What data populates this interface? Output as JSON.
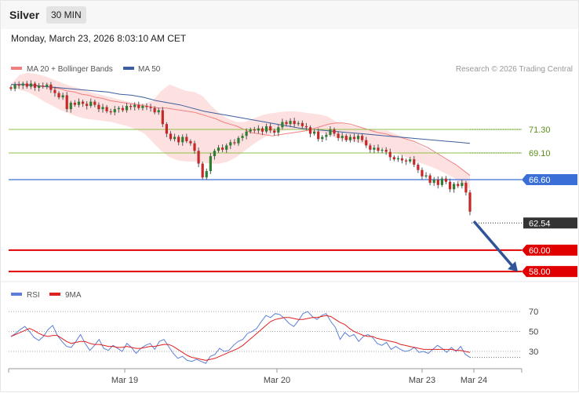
{
  "header": {
    "title": "Silver",
    "timeframe": "30 MIN",
    "date": "Monday, March 23, 2026 8:03:10 AM CET",
    "copyright": "Research © 2026 Trading Central"
  },
  "legend": {
    "main": [
      {
        "label": "MA 20 + Bollinger Bands",
        "color": "#f08080"
      },
      {
        "label": "MA 50",
        "color": "#3d5e9e"
      }
    ],
    "rsi": [
      {
        "label": "RSI",
        "color": "#5b7fd6"
      },
      {
        "label": "9MA",
        "color": "#e02020"
      }
    ]
  },
  "chart_data": [
    {
      "type": "line",
      "ylim": [
        57.2,
        76.0
      ],
      "x_ticks": [
        "Mar 19",
        "Mar 20",
        "Mar 23",
        "Mar 24"
      ],
      "close": [
        75.1,
        75.5,
        75.4,
        75.6,
        75.3,
        75.6,
        75.2,
        75.4,
        75.3,
        75.5,
        75.0,
        74.7,
        74.3,
        74.5,
        73.2,
        73.8,
        73.6,
        73.9,
        73.7,
        73.5,
        73.9,
        73.6,
        73.2,
        73.4,
        73.0,
        72.9,
        73.2,
        73.3,
        73.1,
        73.5,
        73.4,
        73.6,
        73.3,
        73.5,
        73.4,
        73.3,
        72.9,
        73.1,
        71.8,
        70.9,
        70.4,
        70.6,
        70.1,
        70.6,
        70.2,
        70.0,
        69.3,
        68.1,
        66.8,
        67.4,
        68.8,
        69.3,
        69.6,
        69.4,
        69.8,
        70.1,
        70.0,
        70.5,
        70.7,
        71.1,
        71.3,
        71.2,
        71.4,
        71.1,
        71.6,
        71.2,
        71.0,
        71.5,
        72.0,
        71.8,
        72.1,
        71.8,
        71.9,
        71.6,
        71.5,
        70.9,
        71.1,
        70.4,
        70.6,
        70.8,
        71.3,
        70.9,
        70.5,
        70.7,
        70.3,
        70.6,
        70.4,
        70.7,
        70.3,
        69.8,
        69.4,
        69.6,
        69.3,
        69.4,
        69.2,
        68.7,
        68.5,
        68.6,
        68.4,
        68.3,
        68.5,
        68.0,
        67.5,
        66.9,
        67.0,
        66.3,
        66.6,
        66.1,
        66.7,
        66.4,
        65.7,
        66.2,
        66.0,
        66.3,
        65.4,
        63.6
      ],
      "ma20": [
        75.5,
        75.5,
        75.5,
        75.5,
        75.4,
        75.3,
        75.2,
        75.1,
        74.9,
        74.8,
        74.6,
        74.5,
        74.3,
        74.2,
        74.0,
        73.9,
        73.8,
        73.7,
        73.6,
        73.5,
        73.4,
        73.3,
        73.3,
        73.2,
        73.1,
        73.0,
        72.9,
        72.7,
        72.5,
        72.3,
        72.0,
        71.8,
        71.6,
        71.3,
        71.0,
        70.9,
        70.8,
        70.7,
        70.8,
        70.9,
        71.0,
        71.1,
        71.2,
        71.4,
        71.6,
        71.8,
        71.9,
        71.9,
        71.8,
        71.6,
        71.4,
        71.2,
        71.0,
        70.9,
        70.7,
        70.6,
        70.4,
        70.2,
        69.9,
        69.6,
        69.2,
        68.8,
        68.4,
        68.0,
        67.5,
        67.0
      ],
      "ma50": [
        75.5,
        75.5,
        75.4,
        75.3,
        75.2,
        75.1,
        75.0,
        74.9,
        74.8,
        74.6,
        74.5,
        74.3,
        74.0,
        73.8,
        73.6,
        73.3,
        73.0,
        72.8,
        72.6,
        72.4,
        72.2,
        72.0,
        71.8,
        71.6,
        71.4,
        71.3,
        71.2,
        71.1,
        71.0,
        70.9,
        70.8,
        70.7,
        70.6,
        70.5,
        70.4,
        70.3,
        70.2,
        70.1,
        70.0
      ],
      "bollinger_upper": [
        75.5,
        76.4,
        76.6,
        76.5,
        76.3,
        76.0,
        75.7,
        75.4,
        75.2,
        74.9,
        74.7,
        74.5,
        74.3,
        74.1,
        73.9,
        73.8,
        73.7,
        74.0,
        74.9,
        75.5,
        75.2,
        74.9,
        74.8,
        74.4,
        73.5,
        72.8,
        72.3,
        72.0,
        72.0,
        72.3,
        72.6,
        72.8,
        72.9,
        73.0,
        73.0,
        72.9,
        72.8,
        72.7,
        72.5,
        72.0,
        71.8,
        71.6,
        71.4,
        71.3,
        71.2,
        71.2,
        70.9,
        70.6,
        70.2,
        69.8,
        69.4,
        69.0,
        68.6,
        68.2,
        67.6,
        67.0
      ],
      "bollinger_lower": [
        75.5,
        75.0,
        74.8,
        74.4,
        73.9,
        73.5,
        73.1,
        72.8,
        72.5,
        72.3,
        72.2,
        72.1,
        72.0,
        71.8,
        71.6,
        71.3,
        70.9,
        70.1,
        69.3,
        68.7,
        68.4,
        68.3,
        68.3,
        68.2,
        68.1,
        68.1,
        68.3,
        68.7,
        69.3,
        69.9,
        70.4,
        70.8,
        71.1,
        71.2,
        71.3,
        71.2,
        71.1,
        71.0,
        70.8,
        70.5,
        70.3,
        70.2,
        70.0,
        69.8,
        69.6,
        69.4,
        69.1,
        68.8,
        68.5,
        68.2,
        67.9,
        67.6,
        67.2,
        66.8,
        66.2,
        65.7
      ],
      "levels": [
        {
          "label": "71.30",
          "value": 71.3,
          "kind": "resistance",
          "color": "#8fbf4a",
          "text_color": "#5a8f1e"
        },
        {
          "label": "69.10",
          "value": 69.1,
          "kind": "resistance",
          "color": "#8fbf4a",
          "text_color": "#5a8f1e"
        },
        {
          "label": "66.60",
          "value": 66.6,
          "kind": "pivot",
          "color": "#3a6fd8",
          "text_color": "#ffffff"
        },
        {
          "label": "62.54",
          "value": 62.54,
          "kind": "last-price",
          "color": "#333333",
          "text_color": "#ffffff"
        },
        {
          "label": "60.00",
          "value": 60.0,
          "kind": "support",
          "color": "#e00000",
          "text_color": "#ffffff"
        },
        {
          "label": "58.00",
          "value": 58.0,
          "kind": "support",
          "color": "#e00000",
          "text_color": "#ffffff"
        }
      ],
      "arrow": {
        "from": 62.7,
        "to": 58.0,
        "color": "#2f5597"
      }
    },
    {
      "type": "line",
      "ylim": [
        15,
        78
      ],
      "y_ticks": [
        "70",
        "50",
        "30"
      ],
      "rsi": [
        45,
        48,
        52,
        55,
        50,
        44,
        41,
        45,
        52,
        56,
        46,
        40,
        35,
        34,
        40,
        47,
        38,
        31,
        36,
        42,
        33,
        31,
        36,
        33,
        30,
        38,
        34,
        28,
        33,
        36,
        38,
        32,
        40,
        42,
        35,
        28,
        23,
        25,
        21,
        20,
        22,
        20,
        18,
        25,
        27,
        33,
        30,
        31,
        36,
        40,
        42,
        48,
        50,
        53,
        60,
        66,
        64,
        68,
        67,
        63,
        58,
        55,
        61,
        68,
        70,
        65,
        62,
        66,
        68,
        60,
        54,
        42,
        49,
        45,
        47,
        40,
        45,
        47,
        44,
        38,
        36,
        39,
        32,
        35,
        32,
        30,
        31,
        34,
        29,
        30,
        28,
        32,
        36,
        33,
        29,
        34,
        30,
        35,
        27,
        24
      ],
      "rsi_ma": [
        45,
        47,
        49,
        51,
        53,
        51,
        48,
        46,
        45,
        46,
        46,
        43,
        40,
        38,
        39,
        40,
        40,
        38,
        37,
        37,
        36,
        35,
        35,
        34,
        34,
        35,
        34,
        33,
        33,
        34,
        35,
        35,
        36,
        37,
        37,
        35,
        32,
        29,
        26,
        24,
        23,
        22,
        21,
        22,
        23,
        25,
        27,
        29,
        31,
        33,
        36,
        40,
        44,
        48,
        52,
        56,
        60,
        62,
        63,
        64,
        64,
        63,
        62,
        62,
        63,
        64,
        64,
        65,
        66,
        65,
        62,
        59,
        57,
        53,
        50,
        48,
        46,
        45,
        45,
        43,
        42,
        41,
        40,
        39,
        37,
        36,
        35,
        34,
        33,
        32,
        32,
        32,
        32,
        32,
        32,
        32,
        31,
        31,
        30,
        29
      ]
    }
  ]
}
